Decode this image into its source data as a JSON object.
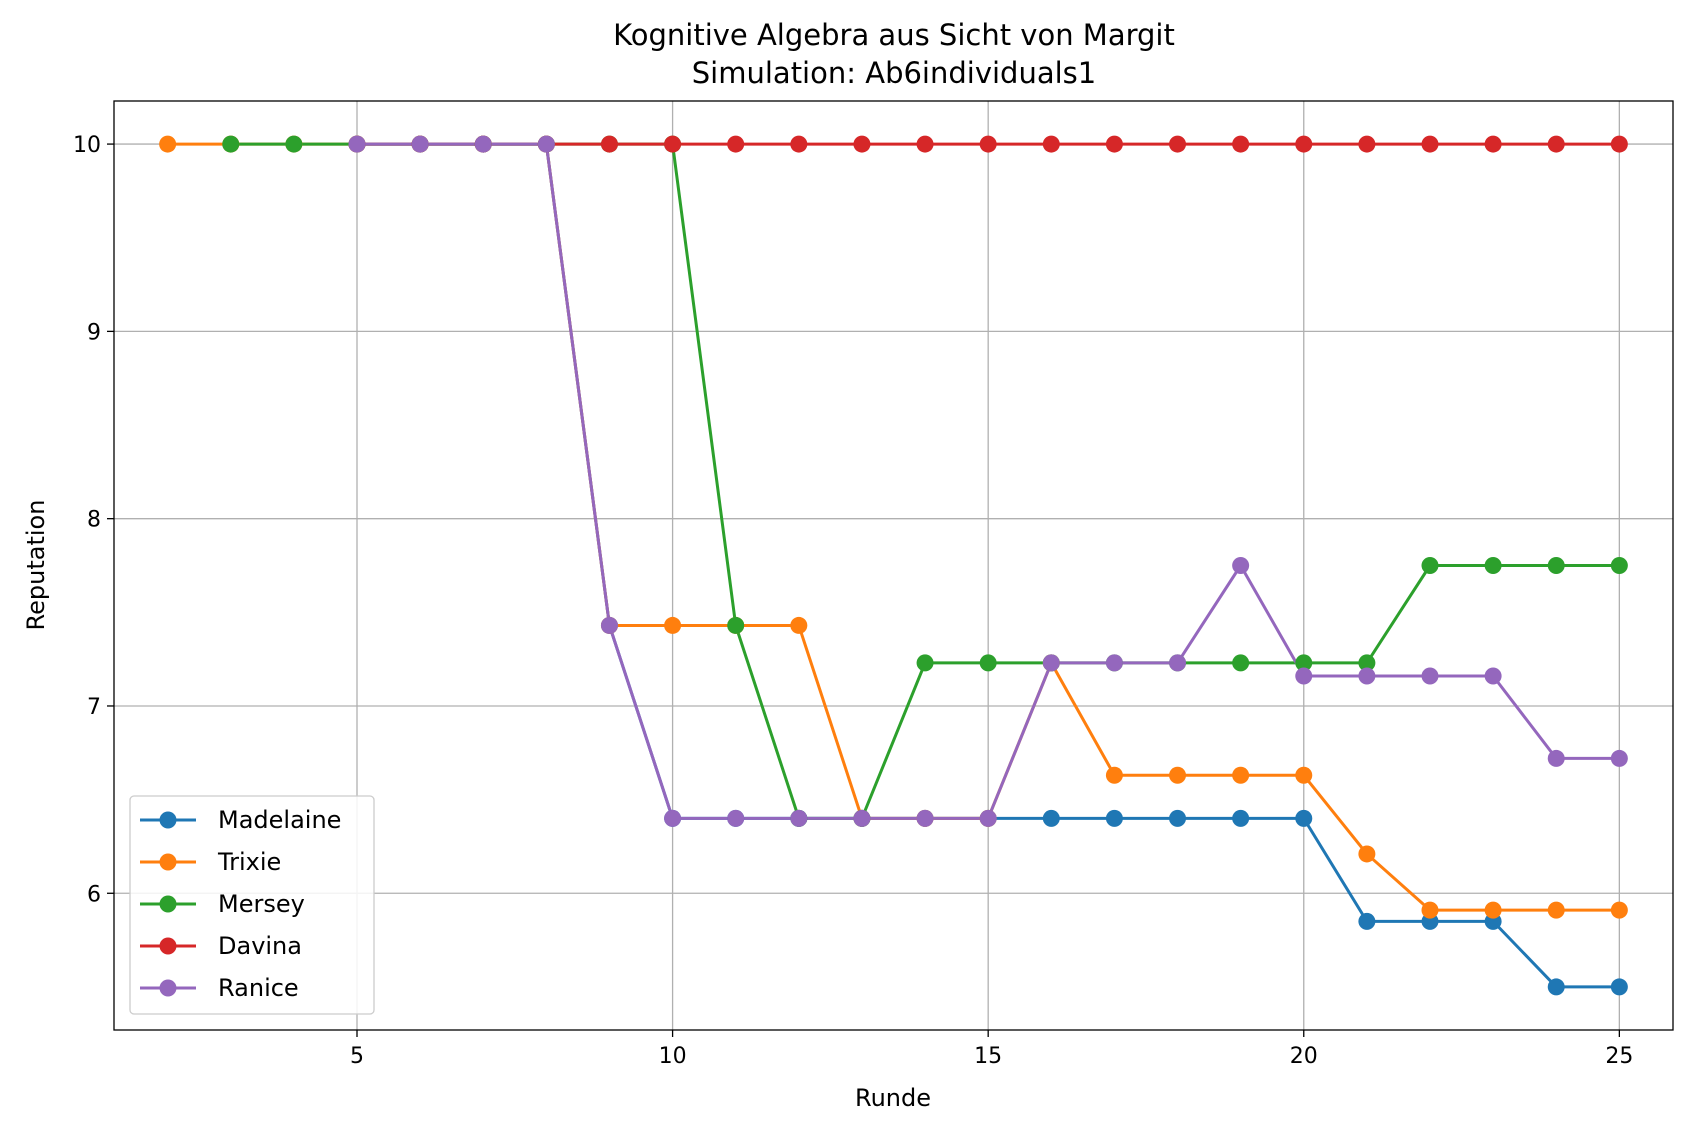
{
  "chart_data": {
    "type": "line",
    "title": "Kognitive Algebra aus Sicht von Margit",
    "subtitle": "Simulation: Ab6individuals1",
    "xlabel": "Runde",
    "ylabel": "Reputation",
    "xlim": [
      1.15,
      25.85
    ],
    "ylim": [
      5.27,
      10.23
    ],
    "xticks": [
      "5",
      "10",
      "15",
      "20",
      "25"
    ],
    "yticks": [
      "6",
      "7",
      "8",
      "9",
      "10"
    ],
    "grid": true,
    "legend_position": "lower-left",
    "series": [
      {
        "name": "Madelaine",
        "color": "#1f77b4",
        "x": [
          5,
          6,
          7,
          8,
          9,
          10,
          11,
          12,
          13,
          14,
          15,
          16,
          17,
          18,
          19,
          20,
          21,
          22,
          23,
          24,
          25
        ],
        "y": [
          10,
          10,
          10,
          10,
          7.43,
          6.4,
          6.4,
          6.4,
          6.4,
          6.4,
          6.4,
          6.4,
          6.4,
          6.4,
          6.4,
          6.4,
          5.85,
          5.85,
          5.85,
          5.5,
          5.5
        ]
      },
      {
        "name": "Trixie",
        "color": "#ff7f0e",
        "x": [
          2,
          3,
          4,
          5,
          6,
          7,
          8,
          9,
          10,
          11,
          12,
          13,
          14,
          15,
          16,
          17,
          18,
          19,
          20,
          21,
          22,
          23,
          24,
          25
        ],
        "y": [
          10,
          10,
          10,
          10,
          10,
          10,
          10,
          7.43,
          7.43,
          7.43,
          7.43,
          6.4,
          6.4,
          6.4,
          7.23,
          6.63,
          6.63,
          6.63,
          6.63,
          6.21,
          5.91,
          5.91,
          5.91,
          5.91
        ]
      },
      {
        "name": "Mersey",
        "color": "#2ca02c",
        "x": [
          3,
          4,
          5,
          6,
          7,
          8,
          9,
          10,
          11,
          12,
          13,
          14,
          15,
          16,
          17,
          18,
          19,
          20,
          21,
          22,
          23,
          24,
          25
        ],
        "y": [
          10,
          10,
          10,
          10,
          10,
          10,
          10,
          10,
          7.43,
          6.4,
          6.4,
          7.23,
          7.23,
          7.23,
          7.23,
          7.23,
          7.23,
          7.23,
          7.23,
          7.75,
          7.75,
          7.75,
          7.75
        ]
      },
      {
        "name": "Davina",
        "color": "#d62728",
        "x": [
          5,
          6,
          7,
          8,
          9,
          10,
          11,
          12,
          13,
          14,
          15,
          16,
          17,
          18,
          19,
          20,
          21,
          22,
          23,
          24,
          25
        ],
        "y": [
          10,
          10,
          10,
          10,
          10,
          10,
          10,
          10,
          10,
          10,
          10,
          10,
          10,
          10,
          10,
          10,
          10,
          10,
          10,
          10,
          10
        ]
      },
      {
        "name": "Ranice",
        "color": "#9467bd",
        "x": [
          5,
          6,
          7,
          8,
          9,
          10,
          11,
          12,
          13,
          14,
          15,
          16,
          17,
          18,
          19,
          20,
          21,
          22,
          23,
          24,
          25
        ],
        "y": [
          10,
          10,
          10,
          10,
          7.43,
          6.4,
          6.4,
          6.4,
          6.4,
          6.4,
          6.4,
          7.23,
          7.23,
          7.23,
          7.75,
          7.16,
          7.16,
          7.16,
          7.16,
          6.72,
          6.72
        ]
      }
    ]
  }
}
